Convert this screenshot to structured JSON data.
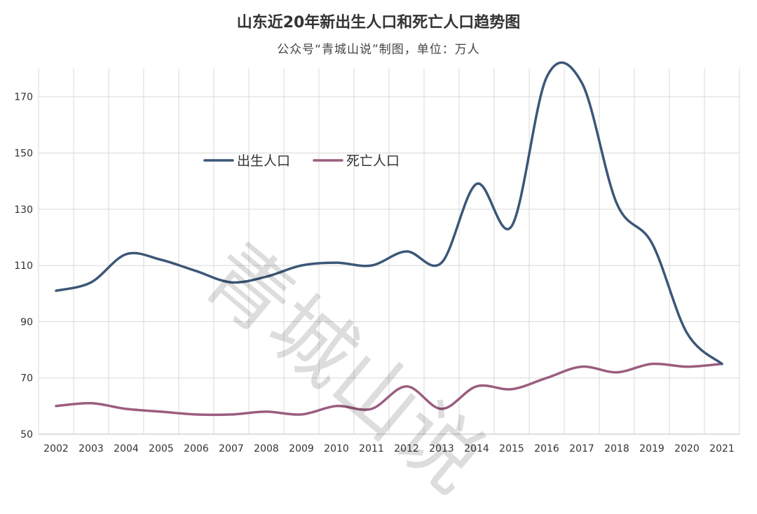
{
  "header": {
    "title": "山东近20年新出生人口和死亡人口趋势图",
    "subtitle": "公众号“青城山说”制图，单位：万人"
  },
  "watermark": "青城山说",
  "chart_data": {
    "type": "line",
    "title": "山东近20年新出生人口和死亡人口趋势图",
    "subtitle": "公众号“青城山说”制图，单位：万人",
    "x": [
      "2002",
      "2003",
      "2004",
      "2005",
      "2006",
      "2007",
      "2008",
      "2009",
      "2010",
      "2011",
      "2012",
      "2013",
      "2014",
      "2015",
      "2016",
      "2017",
      "2018",
      "2019",
      "2020",
      "2021"
    ],
    "series": [
      {
        "name": "出生人口",
        "color": "#3b5777",
        "values": [
          101,
          104,
          114,
          112,
          108,
          104,
          106,
          110,
          111,
          110,
          115,
          111,
          139,
          124,
          177,
          175,
          132,
          118,
          86,
          75
        ]
      },
      {
        "name": "死亡人口",
        "color": "#9b5d7f",
        "values": [
          60,
          61,
          59,
          58,
          57,
          57,
          58,
          57,
          60,
          59,
          67,
          59,
          67,
          66,
          70,
          74,
          72,
          75,
          74,
          75
        ]
      }
    ],
    "yticks": [
      50,
      70,
      90,
      110,
      130,
      150,
      170
    ],
    "ylim": [
      50,
      180
    ],
    "grid": true,
    "legend_position": "upper-left inside plot"
  }
}
